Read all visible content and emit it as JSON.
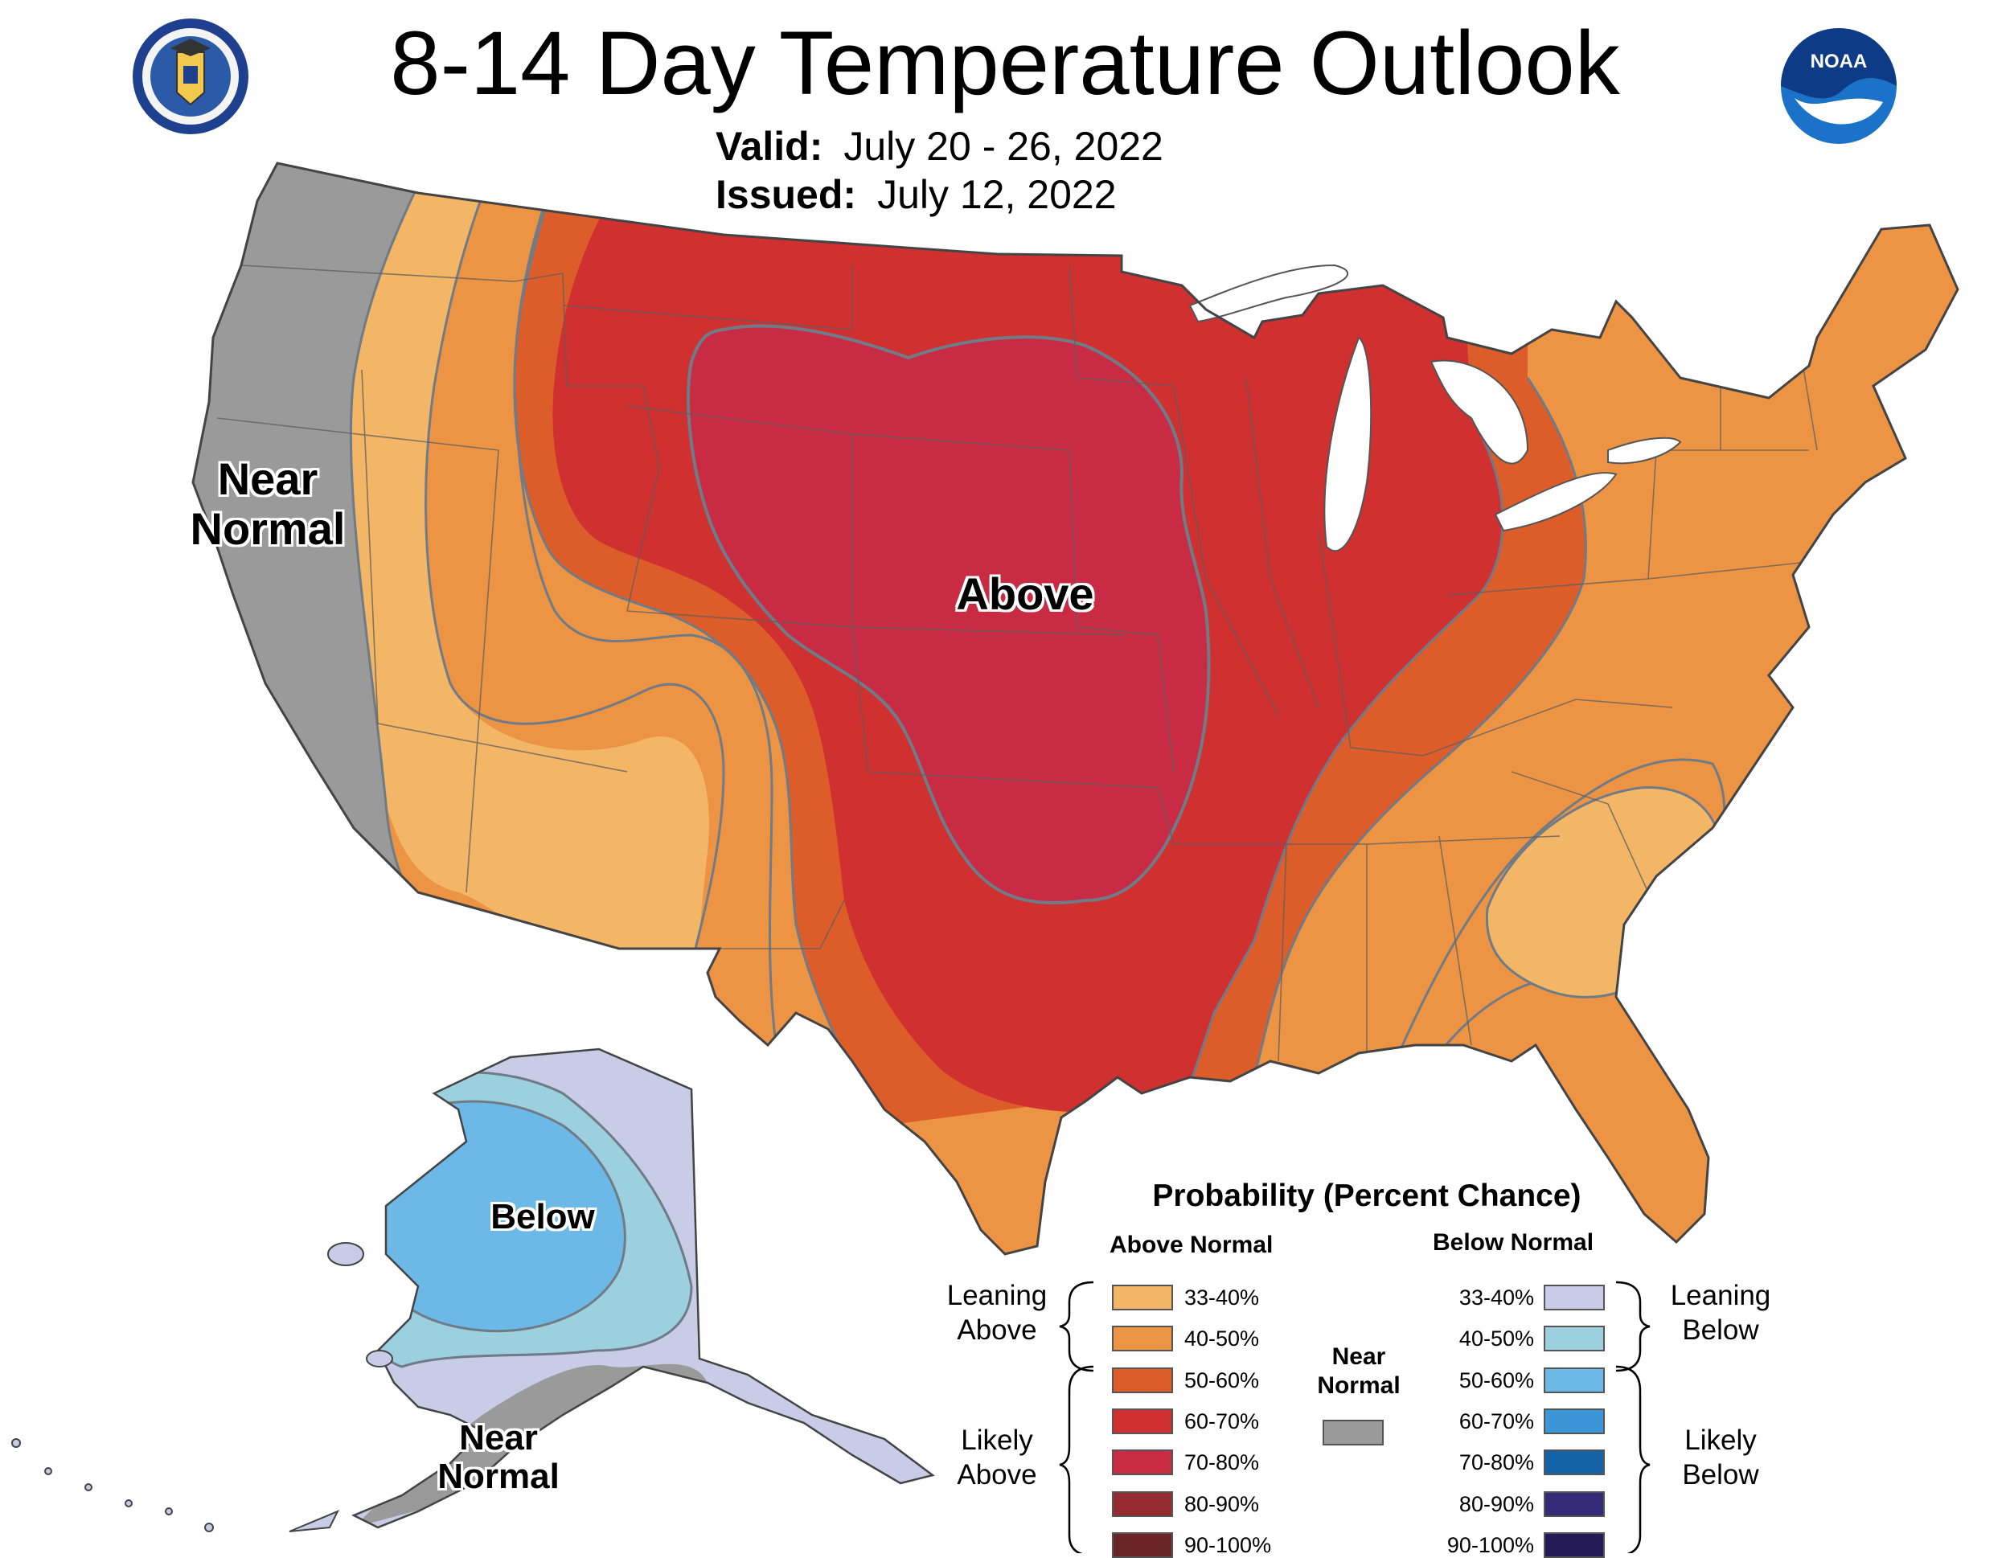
{
  "header": {
    "title": "8-14 Day Temperature Outlook",
    "valid_label": "Valid:",
    "valid_value": "July 20 - 26, 2022",
    "issued_label": "Issued:",
    "issued_value": "July 12, 2022"
  },
  "logos": {
    "left": "department-of-commerce-seal",
    "right": "noaa-logo",
    "noaa_text": "NOAA"
  },
  "map_labels": {
    "near_normal_west": "Near\nNormal",
    "above": "Above",
    "below_alaska": "Below",
    "near_normal_alaska": "Near\nNormal"
  },
  "legend": {
    "title": "Probability (Percent Chance)",
    "above_header": "Above Normal",
    "below_header": "Below Normal",
    "near_header": "Near\nNormal",
    "leaning_above": "Leaning\nAbove",
    "likely_above": "Likely\nAbove",
    "leaning_below": "Leaning\nBelow",
    "likely_below": "Likely\nBelow",
    "above_items": [
      {
        "label": "33-40%",
        "color": "#f3b566"
      },
      {
        "label": "40-50%",
        "color": "#ec9443"
      },
      {
        "label": "50-60%",
        "color": "#dc5c2a"
      },
      {
        "label": "60-70%",
        "color": "#d03030"
      },
      {
        "label": "70-80%",
        "color": "#c92b44"
      },
      {
        "label": "80-90%",
        "color": "#952b31"
      },
      {
        "label": "90-100%",
        "color": "#6b2526"
      }
    ],
    "below_items": [
      {
        "label": "33-40%",
        "color": "#c9cce6"
      },
      {
        "label": "40-50%",
        "color": "#9dd0df"
      },
      {
        "label": "50-60%",
        "color": "#6cb8e6"
      },
      {
        "label": "60-70%",
        "color": "#3b95d6"
      },
      {
        "label": "70-80%",
        "color": "#1363a6"
      },
      {
        "label": "80-90%",
        "color": "#332a78"
      },
      {
        "label": "90-100%",
        "color": "#241a55"
      }
    ],
    "near_color": "#9a9a9a"
  }
}
